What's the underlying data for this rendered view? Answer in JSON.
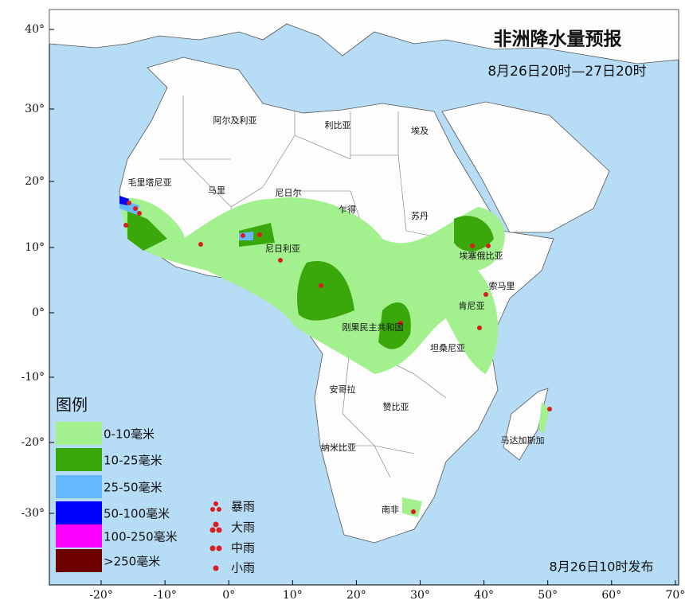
{
  "header": {
    "title": "非洲降水量预报",
    "subtitle": "8月26日20时—27日20时"
  },
  "axes": {
    "lat_labels": [
      "40°",
      "30°",
      "20°",
      "10°",
      "0°",
      "-10°",
      "-20°",
      "-30°"
    ],
    "lon_labels": [
      "-20°",
      "-10°",
      "0°",
      "10°",
      "20°",
      "30°",
      "40°",
      "50°",
      "60°",
      "70°"
    ]
  },
  "countries": [
    "阿尔及利亚",
    "利比亚",
    "埃及",
    "毛里塔尼亚",
    "马里",
    "尼日尔",
    "乍得",
    "苏丹",
    "尼日利亚",
    "埃塞俄比亚",
    "索马里",
    "肯尼亚",
    "刚果民主共和国",
    "坦桑尼亚",
    "安哥拉",
    "赞比亚",
    "纳米比亚",
    "南非",
    "马达加斯加"
  ],
  "legend": {
    "title": "图例",
    "fills": [
      {
        "label": "0-10毫米",
        "color": "#a3f08f"
      },
      {
        "label": "10-25毫米",
        "color": "#3aa80a"
      },
      {
        "label": "25-50毫米",
        "color": "#66b8ff"
      },
      {
        "label": "50-100毫米",
        "color": "#0000fe"
      },
      {
        "label": "100-250毫米",
        "color": "#fe00fe"
      },
      {
        "label": ">250毫米",
        "color": "#6e0000"
      }
    ],
    "symbols": [
      "暴雨",
      "大雨",
      "中雨",
      "小雨"
    ]
  },
  "footer": "8月26日10时发布"
}
